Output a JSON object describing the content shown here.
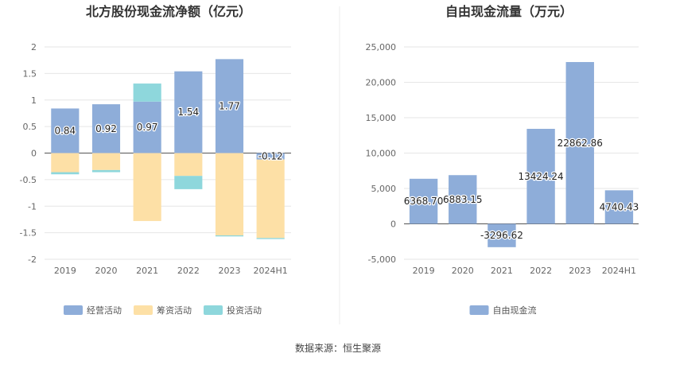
{
  "source": "数据来源：恒生聚源",
  "colors": {
    "operating": "#8eadd9",
    "financing": "#fde0a6",
    "investing": "#8ed7dc",
    "fcf": "#8eadd9",
    "grid": "#e6e6e6",
    "axis": "#555555"
  },
  "chart_data": [
    {
      "type": "bar",
      "stacked": true,
      "title": "北方股份现金流净额（亿元）",
      "categories": [
        "2019",
        "2020",
        "2021",
        "2022",
        "2023",
        "2024H1"
      ],
      "ylim": [
        -2,
        2
      ],
      "yticks": [
        "2",
        "1.5",
        "1",
        "0.5",
        "0",
        "-0.5",
        "-1",
        "-1.5",
        "-2"
      ],
      "ytick_values": [
        2,
        1.5,
        1,
        0.5,
        0,
        -0.5,
        -1,
        -1.5,
        -2
      ],
      "grid": true,
      "legend_position": "bottom",
      "series": [
        {
          "name": "经营活动",
          "key": "operating",
          "values": [
            0.84,
            0.92,
            0.97,
            1.54,
            1.77,
            -0.12
          ],
          "labels": [
            "0.84",
            "0.92",
            "0.97",
            "1.54",
            "1.77",
            "-0.12"
          ]
        },
        {
          "name": "筹资活动",
          "key": "financing",
          "values": [
            -0.36,
            -0.32,
            -1.28,
            -0.43,
            -1.55,
            -1.48
          ]
        },
        {
          "name": "投资活动",
          "key": "investing",
          "values": [
            -0.04,
            -0.04,
            0.34,
            -0.25,
            -0.02,
            -0.02
          ]
        }
      ]
    },
    {
      "type": "bar",
      "title": "自由现金流量（万元）",
      "categories": [
        "2019",
        "2020",
        "2021",
        "2022",
        "2023",
        "2024H1"
      ],
      "ylim": [
        -5000,
        25000
      ],
      "yticks": [
        "25,000",
        "20,000",
        "15,000",
        "10,000",
        "5,000",
        "0",
        "-5,000"
      ],
      "ytick_values": [
        25000,
        20000,
        15000,
        10000,
        5000,
        0,
        -5000
      ],
      "grid": true,
      "legend_position": "bottom",
      "series": [
        {
          "name": "自由现金流",
          "key": "fcf",
          "values": [
            6368.7,
            6883.15,
            -3296.62,
            13424.24,
            22862.86,
            4740.43
          ],
          "labels": [
            "6368.70",
            "6883.15",
            "-3296.62",
            "13424.24",
            "22862.86",
            "4740.43"
          ]
        }
      ]
    }
  ]
}
